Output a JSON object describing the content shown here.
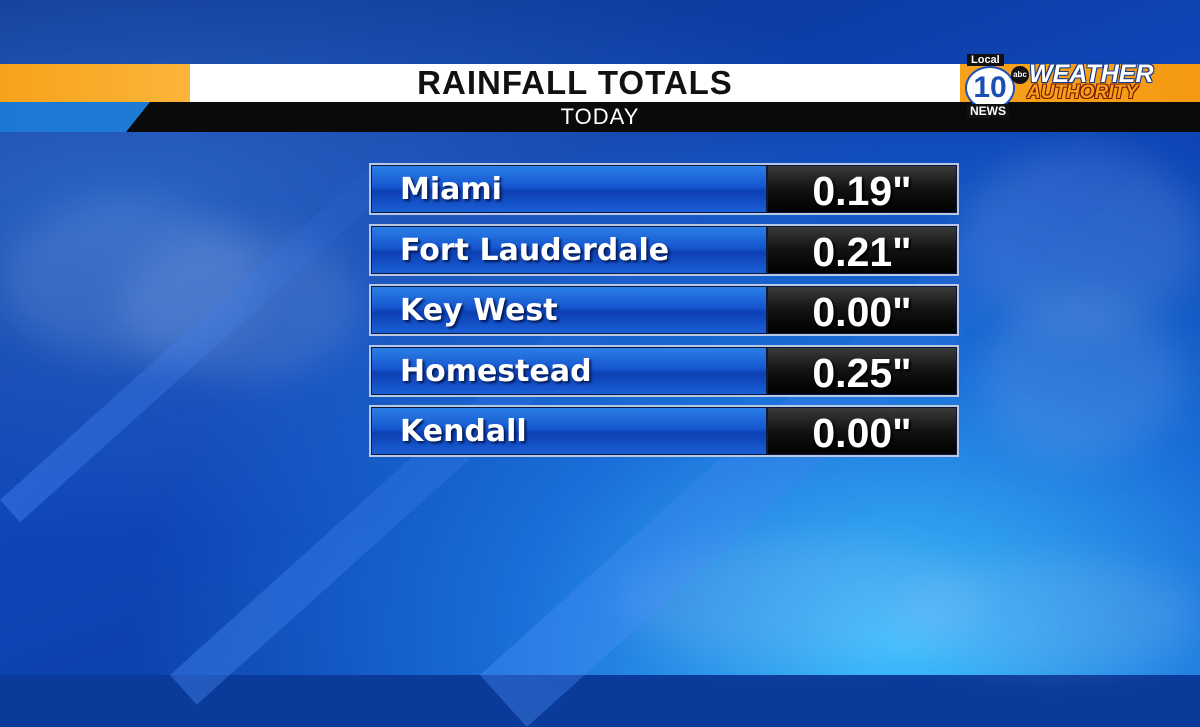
{
  "header": {
    "title": "RAINFALL TOTALS",
    "subtitle": "TODAY"
  },
  "logo": {
    "local": "Local",
    "number": "10",
    "news": "NEWS",
    "network": "abc",
    "line1": "WEATHER",
    "line2": "AUTHORITY"
  },
  "rows": [
    {
      "city": "Miami",
      "value": "0.19\""
    },
    {
      "city": "Fort Lauderdale",
      "value": "0.21\""
    },
    {
      "city": "Key West",
      "value": "0.00\""
    },
    {
      "city": "Homestead",
      "value": "0.25\""
    },
    {
      "city": "Kendall",
      "value": "0.00\""
    }
  ],
  "colors": {
    "accent_orange": "#f7a21b",
    "bar_blue": "#1656cf",
    "value_black": "#000000",
    "background": "#0a3a9a"
  }
}
